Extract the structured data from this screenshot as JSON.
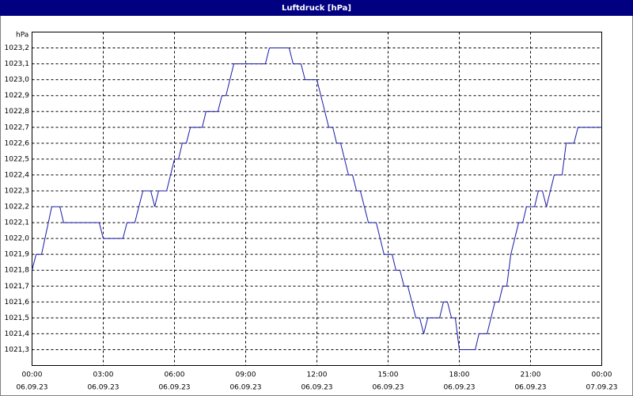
{
  "chart_data": {
    "type": "line",
    "title": "Luftdruck [hPa]",
    "y_unit": "hPa",
    "x": [
      0,
      0.17,
      0.4,
      0.83,
      1.17,
      1.33,
      2.83,
      3,
      3.83,
      4,
      4.33,
      4.67,
      5,
      5.17,
      5.33,
      5.67,
      6,
      6.17,
      6.33,
      6.5,
      6.67,
      7.17,
      7.33,
      7.83,
      8,
      8.17,
      8.5,
      9.83,
      10,
      10.83,
      11,
      11.33,
      11.5,
      12,
      12.5,
      12.67,
      12.83,
      13,
      13.33,
      13.5,
      13.67,
      13.83,
      14.17,
      14.5,
      14.83,
      15.17,
      15.33,
      15.5,
      15.67,
      15.83,
      16.17,
      16.33,
      16.5,
      16.67,
      17.17,
      17.33,
      17.5,
      17.67,
      17.83,
      18,
      18.67,
      18.83,
      19.17,
      19.5,
      19.67,
      19.83,
      20,
      20.17,
      20.5,
      20.67,
      20.83,
      21.17,
      21.33,
      21.5,
      21.67,
      22,
      22.33,
      22.5,
      22.83,
      23,
      24
    ],
    "values": [
      1021.8,
      1021.9,
      1021.9,
      1022.2,
      1022.2,
      1022.1,
      1022.1,
      1022.0,
      1022.0,
      1022.1,
      1022.1,
      1022.3,
      1022.3,
      1022.2,
      1022.3,
      1022.3,
      1022.5,
      1022.5,
      1022.6,
      1022.6,
      1022.7,
      1022.7,
      1022.8,
      1022.8,
      1022.9,
      1022.9,
      1023.1,
      1023.1,
      1023.2,
      1023.2,
      1023.1,
      1023.1,
      1023.0,
      1023.0,
      1022.7,
      1022.7,
      1022.6,
      1022.6,
      1022.4,
      1022.4,
      1022.3,
      1022.3,
      1022.1,
      1022.1,
      1021.9,
      1021.9,
      1021.8,
      1021.8,
      1021.7,
      1021.7,
      1021.5,
      1021.5,
      1021.4,
      1021.5,
      1021.5,
      1021.6,
      1021.6,
      1021.5,
      1021.5,
      1021.3,
      1021.3,
      1021.4,
      1021.4,
      1021.6,
      1021.6,
      1021.7,
      1021.7,
      1021.9,
      1022.1,
      1022.1,
      1022.2,
      1022.2,
      1022.3,
      1022.3,
      1022.2,
      1022.4,
      1022.4,
      1022.6,
      1022.6,
      1022.7,
      1022.7
    ],
    "color": "#1a1aa8",
    "xlim": [
      0,
      24
    ],
    "xticks": [
      {
        "value": 0,
        "label": "00:00"
      },
      {
        "value": 3,
        "label": "03:00"
      },
      {
        "value": 6,
        "label": "06:00"
      },
      {
        "value": 9,
        "label": "09:00"
      },
      {
        "value": 12,
        "label": "12:00"
      },
      {
        "value": 15,
        "label": "15:00"
      },
      {
        "value": 18,
        "label": "18:00"
      },
      {
        "value": 21,
        "label": "21:00"
      },
      {
        "value": 24,
        "label": "00:00"
      }
    ],
    "xtick_dates": [
      "06.09.23",
      "06.09.23",
      "06.09.23",
      "06.09.23",
      "06.09.23",
      "06.09.23",
      "06.09.23",
      "06.09.23",
      "07.09.23"
    ],
    "ylim": [
      1021.2,
      1023.3
    ],
    "yticks": [
      {
        "value": 1021.3,
        "label": "1021,3"
      },
      {
        "value": 1021.4,
        "label": "1021,4"
      },
      {
        "value": 1021.5,
        "label": "1021,5"
      },
      {
        "value": 1021.6,
        "label": "1021,6"
      },
      {
        "value": 1021.7,
        "label": "1021,7"
      },
      {
        "value": 1021.8,
        "label": "1021,8"
      },
      {
        "value": 1021.9,
        "label": "1021,9"
      },
      {
        "value": 1022.0,
        "label": "1022,0"
      },
      {
        "value": 1022.1,
        "label": "1022,1"
      },
      {
        "value": 1022.2,
        "label": "1022,2"
      },
      {
        "value": 1022.3,
        "label": "1022,3"
      },
      {
        "value": 1022.4,
        "label": "1022,4"
      },
      {
        "value": 1022.5,
        "label": "1022,5"
      },
      {
        "value": 1022.6,
        "label": "1022,6"
      },
      {
        "value": 1022.7,
        "label": "1022,7"
      },
      {
        "value": 1022.8,
        "label": "1022,8"
      },
      {
        "value": 1022.9,
        "label": "1022,9"
      },
      {
        "value": 1023.0,
        "label": "1023,0"
      },
      {
        "value": 1023.1,
        "label": "1023,1"
      },
      {
        "value": 1023.2,
        "label": "1023,2"
      }
    ],
    "grid": true
  }
}
